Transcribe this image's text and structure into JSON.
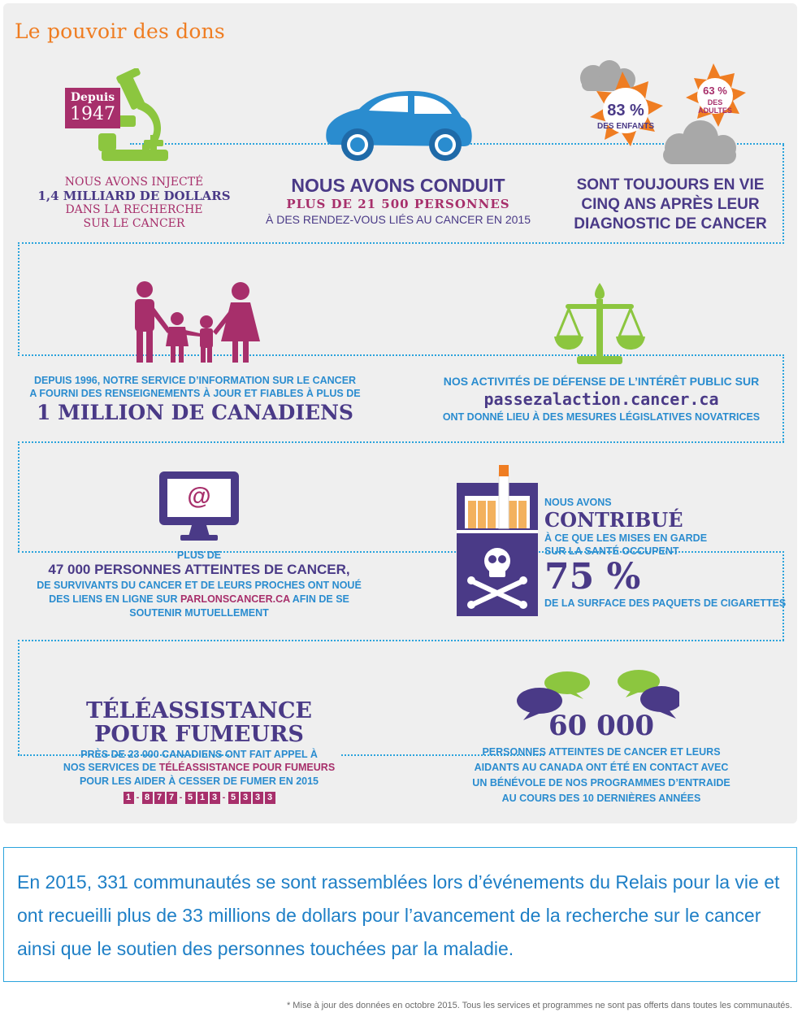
{
  "title": "Le pouvoir des dons",
  "colors": {
    "orange": "#ef7d22",
    "blue": "#2a8ccf",
    "purple": "#4a3a87",
    "magenta": "#a72f6b",
    "green": "#8cc63f",
    "panel": "#efefef"
  },
  "block1": {
    "icon": "microscope-icon",
    "badge_line1": "Depuis",
    "badge_line2": "1947",
    "line1": "NOUS AVONS INJECTÉ",
    "line2": "1,4 MILLIARD DE DOLLARS",
    "line3": "DANS LA RECHERCHE",
    "line4": "SUR LE CANCER"
  },
  "block2": {
    "icon": "car-icon",
    "line1": "NOUS AVONS CONDUIT",
    "line2": "PLUS DE 21 500 PERSONNES",
    "line3": "À DES RENDEZ-VOUS LIÉS AU CANCER EN 2015"
  },
  "block3": {
    "icon": "sun-cloud-icon",
    "children_pct": "83 %",
    "children_label": "DES ENFANTS",
    "adults_pct": "63 %",
    "adults_label1": "DES",
    "adults_label2": "ADULTES",
    "line1": "SONT TOUJOURS EN VIE",
    "line2": "CINQ ANS APRÈS LEUR",
    "line3": "DIAGNOSTIC DE CANCER"
  },
  "block4": {
    "icon": "family-icon",
    "line1": "DEPUIS 1996, NOTRE SERVICE D’INFORMATION SUR LE CANCER",
    "line2": "A FOURNI DES RENSEIGNEMENTS À JOUR ET FIABLES À PLUS DE",
    "line3": "1 MILLION DE CANADIENS"
  },
  "block5": {
    "icon": "scales-icon",
    "line1": "NOS ACTIVITÉS DE DÉFENSE DE L’INTÉRÊT PUBLIC SUR",
    "link": "passezalaction.cancer.ca",
    "line3": "ONT DONNÉ LIEU À DES MESURES LÉGISLATIVES NOVATRICES"
  },
  "block6": {
    "icon": "monitor-at-icon",
    "at_symbol": "@",
    "line1": "PLUS DE",
    "line2": "47 000 PERSONNES ATTEINTES DE CANCER,",
    "line3": "DE SURVIVANTS DU CANCER ET DE LEURS PROCHES ONT NOUÉ",
    "line4a": "DES LIENS EN LIGNE SUR",
    "line4b": "PARLONSCANCER.CA",
    "line4c": "AFIN DE SE",
    "line5": "SOUTENIR MUTUELLEMENT"
  },
  "block7": {
    "icon": "cigarette-pack-icon",
    "line1": "NOUS AVONS",
    "line2": "CONTRIBUÉ",
    "line3": "À CE QUE LES MISES EN GARDE",
    "line4": "SUR LA SANTÉ OCCUPENT",
    "line5": "75 %",
    "line6": "DE LA SURFACE DES PAQUETS DE CIGARETTES"
  },
  "block8": {
    "heading1": "TÉLÉASSISTANCE",
    "heading2": "POUR FUMEURS",
    "line1": "PRÈS DE 23 000 CANADIENS ONT FAIT APPEL À",
    "line2a": "NOS SERVICES DE",
    "line2b": "TÉLÉASSISTANCE POUR FUMEURS",
    "line3": "POUR LES AIDER À CESSER DE FUMER EN 2015",
    "phone": [
      "1",
      "-",
      "8",
      "7",
      "7",
      "-",
      "5",
      "1",
      "3",
      "-",
      "5",
      "3",
      "3",
      "3"
    ]
  },
  "block9": {
    "icon": "speech-bubbles-icon",
    "number": "60 000",
    "line1": "PERSONNES ATTEINTES DE CANCER ET LEURS",
    "line2": "AIDANTS AU CANADA ONT ÉTÉ EN CONTACT AVEC",
    "line3": "UN BÉNÉVOLE DE NOS PROGRAMMES D’ENTRAIDE",
    "line4": "AU COURS DES 10 DERNIÈRES ANNÉES"
  },
  "footer": {
    "text": "En 2015, 331 communautés se sont rassemblées lors d’événements du Relais pour la vie et ont recueilli plus de 33 millions de dollars pour l’avancement de la recherche sur le cancer ainsi que le soutien des personnes touchées par la maladie."
  },
  "note": "* Mise à jour des données en octobre 2015. Tous les services et programmes ne sont pas offerts dans toutes les communautés."
}
